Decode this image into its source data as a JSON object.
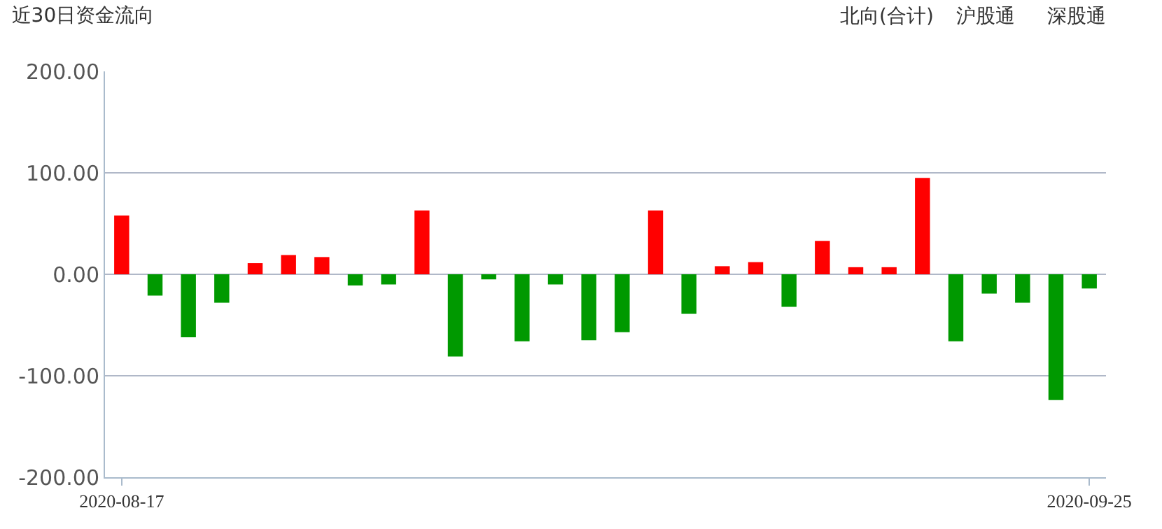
{
  "chart_data": {
    "type": "bar",
    "title": "近30日资金流向",
    "categories": [
      "2020-08-17",
      null,
      null,
      null,
      null,
      null,
      null,
      null,
      null,
      null,
      null,
      null,
      null,
      null,
      null,
      null,
      null,
      null,
      null,
      null,
      null,
      null,
      null,
      null,
      null,
      null,
      null,
      null,
      null,
      "2020-09-25"
    ],
    "values": [
      58,
      -21,
      -62,
      -28,
      11,
      19,
      17,
      -11,
      -10,
      63,
      -81,
      -5,
      -66,
      -10,
      -65,
      -57,
      63,
      -39,
      8,
      12,
      -32,
      33,
      7,
      7,
      95,
      -66,
      -19,
      -28,
      -124,
      -14
    ],
    "colors": [
      "#ff0000",
      "#009900",
      "#009900",
      "#009900",
      "#ff0000",
      "#ff0000",
      "#ff0000",
      "#009900",
      "#009900",
      "#ff0000",
      "#009900",
      "#009900",
      "#009900",
      "#009900",
      "#009900",
      "#009900",
      "#ff0000",
      "#009900",
      "#ff0000",
      "#ff0000",
      "#009900",
      "#ff0000",
      "#ff0000",
      "#ff0000",
      "#ff0000",
      "#009900",
      "#009900",
      "#009900",
      "#009900",
      "#009900"
    ],
    "ylim": [
      -200,
      200
    ],
    "yticks": [
      {
        "value": -200,
        "label": "-200.00"
      },
      {
        "value": -100,
        "label": "-100.00"
      },
      {
        "value": 0,
        "label": "0.00"
      },
      {
        "value": 100,
        "label": "100.00"
      },
      {
        "value": 200,
        "label": "200.00"
      }
    ],
    "grid": "y",
    "annotations": [
      "北向(合计)",
      "沪股通",
      "深股通"
    ]
  }
}
